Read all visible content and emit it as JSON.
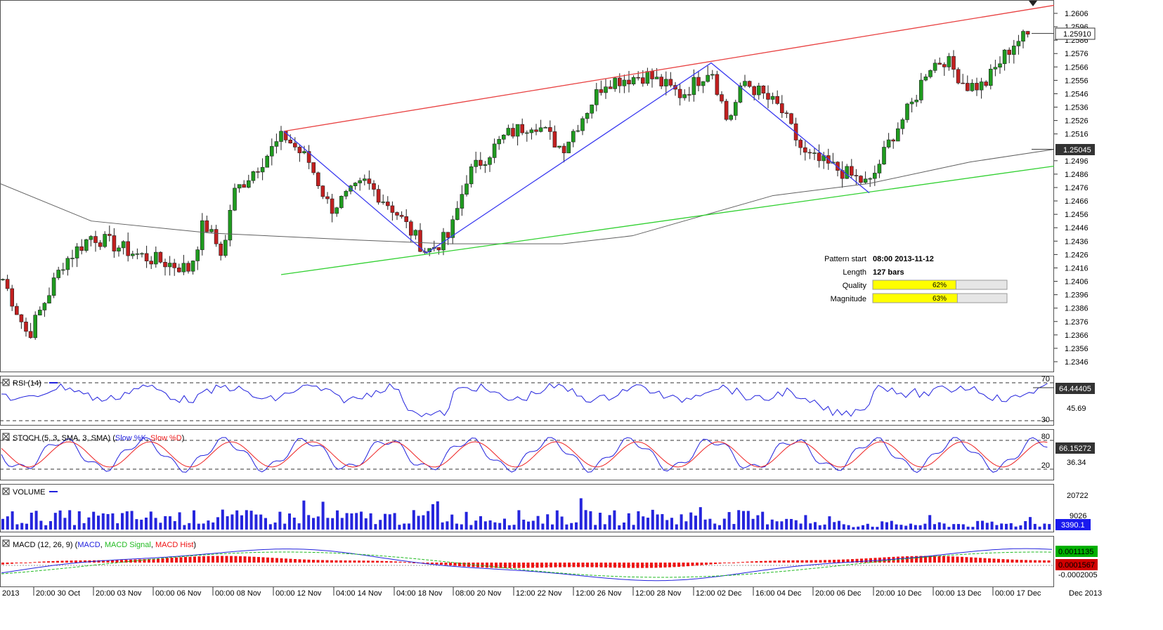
{
  "chart_data": {
    "type": "line",
    "main": {
      "y_ticks": [
        "1.2606",
        "1.2596",
        "1.2586",
        "1.2576",
        "1.2566",
        "1.2556",
        "1.2546",
        "1.2536",
        "1.2526",
        "1.2516",
        "1.2496",
        "1.2486",
        "1.2476",
        "1.2466",
        "1.2456",
        "1.2446",
        "1.2436",
        "1.2426",
        "1.2416",
        "1.2406",
        "1.2396",
        "1.2386",
        "1.2376",
        "1.2366",
        "1.2356",
        "1.2346"
      ],
      "ylim": [
        1.2338,
        1.2612
      ],
      "last_price_label": "1.25910",
      "ma_label": "1.25045",
      "pattern_points": [
        [
          404,
          1.2518
        ],
        [
          607,
          1.2427
        ],
        [
          1012,
          1.2569
        ],
        [
          1237,
          1.2472
        ]
      ],
      "resistance_line": [
        [
          404,
          1.2518
        ],
        [
          1500,
          1.2612
        ]
      ],
      "support_line": [
        [
          400,
          1.2411
        ],
        [
          1500,
          1.2492
        ]
      ],
      "pattern_info": {
        "start_label": "Pattern start",
        "start_value": "08:00 2013-11-12",
        "length_label": "Length",
        "length_value": "127 bars",
        "quality_label": "Quality",
        "quality_value": "62%",
        "quality_fraction": 0.62,
        "magnitude_label": "Magnitude",
        "magnitude_value": "63%",
        "magnitude_fraction": 0.63
      }
    },
    "rsi": {
      "label": "RSI (14)",
      "levels": [
        "70",
        "30"
      ],
      "mid_tick": "45.69",
      "value": "64.44405"
    },
    "stoch": {
      "label_prefix": "STOCH (5, 3, SMA, 3, SMA) (",
      "k_label": "Slow %K",
      "d_label": "Slow %D",
      "levels": [
        "80",
        "20"
      ],
      "mid_tick": "36.34",
      "value": "66.15272"
    },
    "volume": {
      "label": "VOLUME",
      "ticks": [
        "20722",
        "9026"
      ],
      "value": "3390.1"
    },
    "macd": {
      "label_prefix": "MACD (12, 26, 9) (",
      "macd_label": "MACD",
      "signal_label": "MACD Signal",
      "hist_label": "MACD Hist",
      "value_macd": "0.0011135",
      "value_hist": "0.0001567",
      "lower_tick": "-0.0002005"
    },
    "x_labels": [
      "2013",
      "20:00 30 Oct",
      "20:00 03 Nov",
      "00:00 06 Nov",
      "00:00 08 Nov",
      "00:00 12 Nov",
      "04:00 14 Nov",
      "04:00 18 Nov",
      "08:00 20 Nov",
      "12:00 22 Nov",
      "12:00 26 Nov",
      "12:00 28 Nov",
      "12:00 02 Dec",
      "16:00 04 Dec",
      "20:00 06 Dec",
      "20:00 10 Dec",
      "00:00 13 Dec",
      "00:00 17 Dec",
      "Dec 2013"
    ],
    "colors": {
      "up": "#1f9b1f",
      "down": "#c21f1f",
      "resistance": "#e84040",
      "support": "#30d030",
      "pattern": "#3a3af0",
      "ma": "#606060",
      "rsi": "#2222dd",
      "stoch_k": "#2222dd",
      "stoch_d": "#ee2222",
      "volume": "#2525dd",
      "macd": "#2222dd",
      "signal": "#22bb22",
      "hist": "#ee1111",
      "label_green_bg": "#00b000",
      "label_red_bg": "#d00000",
      "label_blue_bg": "#1a1aee",
      "label_dark_bg": "#333333"
    }
  }
}
